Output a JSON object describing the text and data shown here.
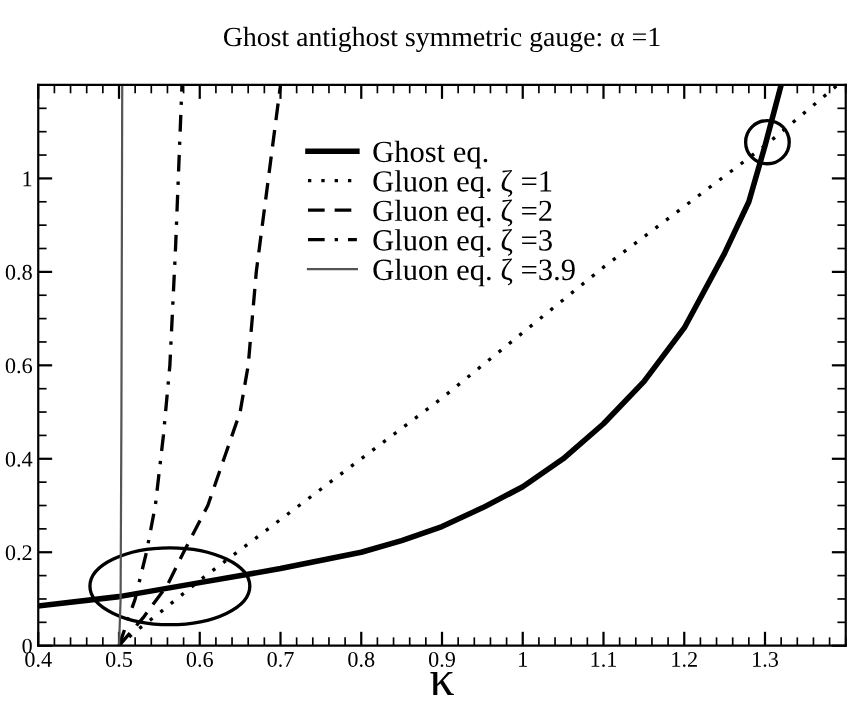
{
  "chart_data": {
    "type": "line",
    "title": "Ghost antighost symmetric gauge: α =1",
    "xlabel": "κ",
    "xlim": [
      0.4,
      1.4
    ],
    "ylim": [
      0,
      1.2
    ],
    "xticks": [
      0.4,
      0.5,
      0.6,
      0.7,
      0.8,
      0.9,
      1,
      1.1,
      1.2,
      1.3
    ],
    "yticks": [
      0,
      0.2,
      0.4,
      0.6,
      0.8,
      1
    ],
    "grid": false,
    "legend": "top",
    "marker": "none",
    "series": [
      {
        "name": "Ghost eq.",
        "color": "#000000",
        "line_style": "solid",
        "x": [
          0.4,
          0.5,
          0.6,
          0.7,
          0.8,
          0.85,
          0.9,
          0.95,
          1.0,
          1.05,
          1.1,
          1.15,
          1.2,
          1.25,
          1.28,
          1.3,
          1.32
        ],
        "values": [
          0.085,
          0.105,
          0.135,
          0.165,
          0.2,
          0.225,
          0.255,
          0.295,
          0.34,
          0.4,
          0.475,
          0.565,
          0.68,
          0.84,
          0.95,
          1.07,
          1.2
        ]
      },
      {
        "name": "Gluon eq. ζ =1",
        "color": "#000000",
        "line_style": "dotted",
        "x": [
          0.5,
          0.52,
          0.55,
          0.6,
          0.7,
          0.8,
          0.9,
          1.0,
          1.1,
          1.2,
          1.3,
          1.39
        ],
        "values": [
          0.0,
          0.03,
          0.07,
          0.14,
          0.27,
          0.4,
          0.53,
          0.67,
          0.81,
          0.94,
          1.07,
          1.2
        ]
      },
      {
        "name": "Gluon eq. ζ =2",
        "color": "#000000",
        "line_style": "dashed",
        "x": [
          0.5,
          0.53,
          0.56,
          0.58,
          0.61,
          0.63,
          0.65,
          0.66,
          0.67,
          0.685,
          0.7
        ],
        "values": [
          0,
          0.06,
          0.13,
          0.2,
          0.3,
          0.4,
          0.5,
          0.6,
          0.8,
          1.0,
          1.2
        ]
      },
      {
        "name": "Gluon eq. ζ =3",
        "color": "#000000",
        "line_style": "dashdot",
        "x": [
          0.5,
          0.52,
          0.534,
          0.545,
          0.555,
          0.563,
          0.57,
          0.578
        ],
        "values": [
          0,
          0.1,
          0.2,
          0.3,
          0.45,
          0.6,
          0.85,
          1.2
        ]
      },
      {
        "name": "Gluon eq. ζ =3.9",
        "color": "#555555",
        "line_style": "solid",
        "x": [
          0.5,
          0.502,
          0.503,
          0.504
        ],
        "values": [
          0,
          0.1,
          0.5,
          1.2
        ]
      }
    ]
  }
}
